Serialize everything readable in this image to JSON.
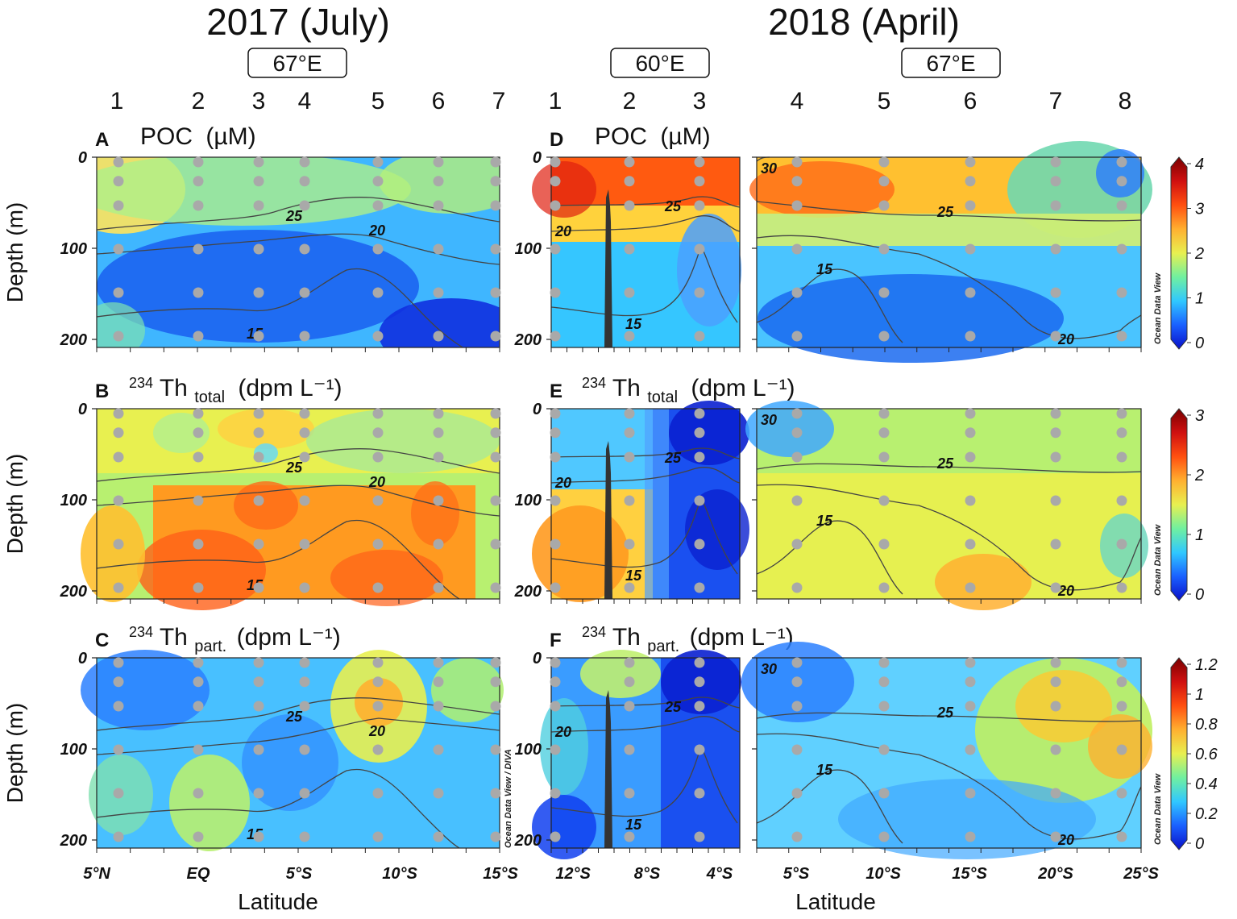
{
  "chart_data": {
    "type": "heatmap",
    "description_titles": {
      "left": "2017 (July)",
      "right": "2018 (April)"
    },
    "longitude_boxes": [
      "67°E",
      "60°E",
      "67°E"
    ],
    "stations_2017": [
      "1",
      "2",
      "3",
      "4",
      "5",
      "6",
      "7"
    ],
    "stations_2018": [
      "1",
      "2",
      "3",
      "4",
      "5",
      "6",
      "7",
      "8"
    ],
    "panel_letters": [
      "A",
      "B",
      "C",
      "D",
      "E",
      "F"
    ],
    "variables": [
      {
        "name": "POC",
        "unit": "(µM)",
        "range": [
          0,
          4
        ],
        "colorbar_ticks": [
          "0",
          "1",
          "2",
          "3",
          "4"
        ]
      },
      {
        "name": "Th_total",
        "sup": "234",
        "base": "Th",
        "sub": "total",
        "unit": "(dpm L⁻¹)",
        "range": [
          0,
          3
        ],
        "colorbar_ticks": [
          "0",
          "1",
          "2",
          "3"
        ]
      },
      {
        "name": "Th_part",
        "sup": "234",
        "base": "Th",
        "sub": "part.",
        "unit": "(dpm L⁻¹)",
        "range": [
          0,
          1.2
        ],
        "colorbar_ticks": [
          "0",
          "0.2",
          "0.4",
          "0.6",
          "0.8",
          "1",
          "1.2"
        ]
      }
    ],
    "ylabel": "Depth (m)",
    "xlabel": "Latitude",
    "depth_ticks": [
      "0",
      "100",
      "200"
    ],
    "ylim": [
      200,
      0
    ],
    "x_ticks_2017": [
      "5°N",
      "EQ",
      "5°S",
      "10°S",
      "15°S"
    ],
    "x_ticks_2018a": [
      "12°S",
      "8°S",
      "4°S"
    ],
    "x_ticks_2018b": [
      "5°S",
      "10°S",
      "15°S",
      "20°S",
      "25°S"
    ],
    "isotherm_labels": [
      "30",
      "25",
      "20",
      "15"
    ],
    "colorbar_caption": "Ocean Data View",
    "side_caption": "Ocean Data View / DIVA"
  }
}
